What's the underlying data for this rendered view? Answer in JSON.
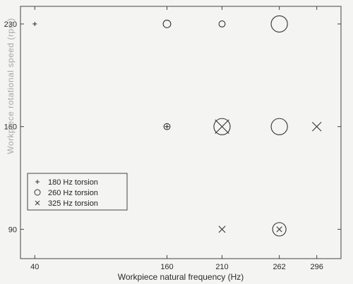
{
  "chart_data": {
    "type": "scatter",
    "xlabel": "Workpiece natural frequency (Hz)",
    "ylabel": "Workpiece rotational speed (rpm)",
    "xticks": [
      40,
      160,
      210,
      262,
      296
    ],
    "yticks": [
      90,
      160,
      230
    ],
    "xlim": [
      27,
      318
    ],
    "ylim": [
      70,
      242
    ],
    "grid": false,
    "legend_position": "bottom-left",
    "series": [
      {
        "name": "180 Hz torsion",
        "marker": "plus",
        "points": [
          {
            "x": 40,
            "y": 230,
            "size": 1
          },
          {
            "x": 160,
            "y": 160,
            "size": 1
          }
        ]
      },
      {
        "name": "260 Hz torsion",
        "marker": "circle",
        "points": [
          {
            "x": 160,
            "y": 230,
            "size": 2
          },
          {
            "x": 210,
            "y": 230,
            "size": 1.5
          },
          {
            "x": 262,
            "y": 230,
            "size": 5
          },
          {
            "x": 160,
            "y": 160,
            "size": 1.5
          },
          {
            "x": 210,
            "y": 160,
            "size": 5
          },
          {
            "x": 262,
            "y": 160,
            "size": 5
          },
          {
            "x": 262,
            "y": 90,
            "size": 4
          }
        ]
      },
      {
        "name": "325 Hz torsion",
        "marker": "cross",
        "points": [
          {
            "x": 210,
            "y": 160,
            "size": 5
          },
          {
            "x": 296,
            "y": 160,
            "size": 3
          },
          {
            "x": 210,
            "y": 90,
            "size": 2
          },
          {
            "x": 262,
            "y": 90,
            "size": 1.5
          }
        ]
      }
    ]
  }
}
